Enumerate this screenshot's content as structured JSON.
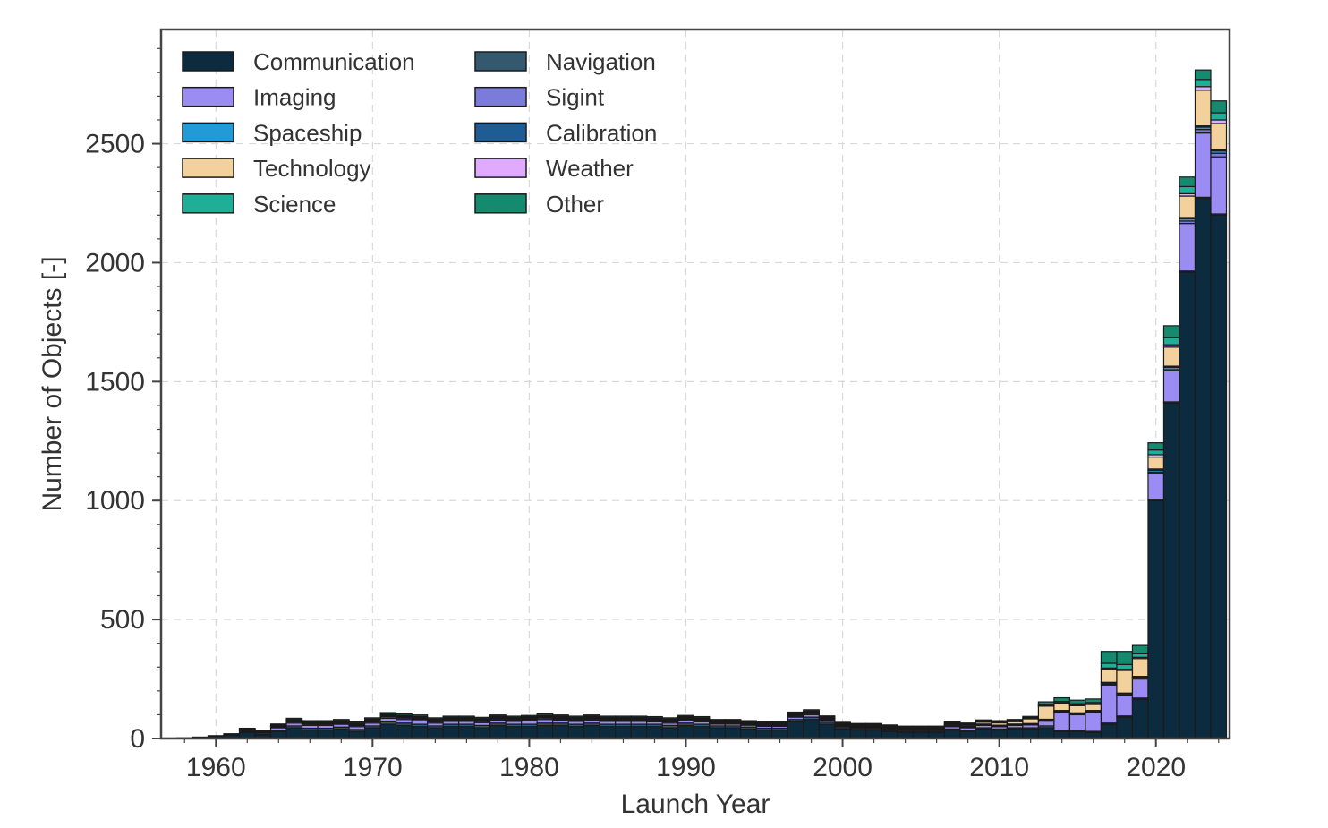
{
  "chart_data": {
    "type": "bar",
    "stacked": true,
    "title": "",
    "xlabel": "Launch Year",
    "ylabel": "Number of Objects [-]",
    "xlim": [
      1956.5,
      2024.7
    ],
    "ylim": [
      0,
      2980
    ],
    "xticks": [
      1960,
      1970,
      1980,
      1990,
      2000,
      2010,
      2020
    ],
    "yticks": [
      0,
      500,
      1000,
      1500,
      2000,
      2500
    ],
    "grid": true,
    "legend": {
      "placement": "top-left",
      "columns": 2
    },
    "x": [
      1957,
      1958,
      1959,
      1960,
      1961,
      1962,
      1963,
      1964,
      1965,
      1966,
      1967,
      1968,
      1969,
      1970,
      1971,
      1972,
      1973,
      1974,
      1975,
      1976,
      1977,
      1978,
      1979,
      1980,
      1981,
      1982,
      1983,
      1984,
      1985,
      1986,
      1987,
      1988,
      1989,
      1990,
      1991,
      1992,
      1993,
      1994,
      1995,
      1996,
      1997,
      1998,
      1999,
      2000,
      2001,
      2002,
      2003,
      2004,
      2005,
      2006,
      2007,
      2008,
      2009,
      2010,
      2011,
      2012,
      2013,
      2014,
      2015,
      2016,
      2017,
      2018,
      2019,
      2020,
      2021,
      2022,
      2023,
      2024
    ],
    "series": [
      {
        "name": "Communication",
        "color": "#0d2b3e",
        "values": [
          2,
          3,
          5,
          10,
          15,
          25,
          15,
          30,
          45,
          35,
          35,
          40,
          30,
          45,
          60,
          55,
          50,
          45,
          50,
          50,
          45,
          55,
          50,
          50,
          55,
          55,
          50,
          55,
          50,
          50,
          50,
          50,
          45,
          55,
          50,
          45,
          45,
          40,
          35,
          35,
          70,
          80,
          60,
          40,
          35,
          35,
          30,
          25,
          25,
          25,
          35,
          30,
          40,
          35,
          40,
          40,
          45,
          30,
          30,
          25,
          60,
          90,
          165,
          1000,
          1410,
          1960,
          2270,
          2200
        ]
      },
      {
        "name": "Navigation",
        "color": "#34586e",
        "values": [
          0,
          0,
          0,
          0,
          2,
          3,
          3,
          5,
          8,
          8,
          8,
          8,
          8,
          8,
          10,
          10,
          10,
          8,
          10,
          10,
          10,
          10,
          10,
          10,
          10,
          10,
          10,
          10,
          10,
          10,
          10,
          10,
          10,
          10,
          10,
          8,
          8,
          8,
          8,
          8,
          10,
          10,
          8,
          6,
          6,
          6,
          5,
          5,
          5,
          5,
          5,
          5,
          5,
          5,
          5,
          5,
          8,
          5,
          5,
          5,
          5,
          5,
          5,
          5,
          5,
          5,
          5,
          5
        ]
      },
      {
        "name": "Imaging",
        "color": "#9a8cf3",
        "values": [
          0,
          0,
          0,
          0,
          0,
          5,
          5,
          10,
          12,
          12,
          12,
          12,
          12,
          12,
          15,
          15,
          15,
          12,
          12,
          12,
          12,
          12,
          12,
          15,
          15,
          12,
          12,
          12,
          12,
          12,
          12,
          10,
          10,
          10,
          10,
          8,
          8,
          8,
          8,
          8,
          10,
          10,
          8,
          5,
          5,
          5,
          5,
          5,
          5,
          5,
          10,
          10,
          10,
          10,
          10,
          12,
          20,
          75,
          65,
          80,
          160,
          85,
          80,
          110,
          130,
          200,
          270,
          240
        ]
      },
      {
        "name": "Sigint",
        "color": "#7b7bd9",
        "values": [
          0,
          0,
          0,
          0,
          0,
          2,
          2,
          3,
          5,
          5,
          5,
          5,
          5,
          5,
          6,
          6,
          6,
          5,
          5,
          5,
          5,
          5,
          5,
          5,
          6,
          5,
          5,
          5,
          5,
          5,
          5,
          5,
          5,
          5,
          5,
          4,
          4,
          4,
          4,
          4,
          5,
          5,
          4,
          3,
          3,
          3,
          3,
          3,
          3,
          3,
          3,
          3,
          3,
          3,
          3,
          3,
          3,
          3,
          3,
          3,
          3,
          3,
          3,
          5,
          5,
          10,
          15,
          15
        ]
      },
      {
        "name": "Spaceship",
        "color": "#229ad6",
        "values": [
          0,
          0,
          0,
          0,
          1,
          1,
          1,
          2,
          2,
          2,
          2,
          2,
          2,
          3,
          3,
          3,
          3,
          3,
          3,
          3,
          3,
          3,
          3,
          3,
          3,
          3,
          3,
          3,
          3,
          3,
          3,
          3,
          3,
          3,
          3,
          2,
          2,
          2,
          2,
          2,
          2,
          2,
          2,
          2,
          2,
          2,
          2,
          2,
          2,
          2,
          2,
          2,
          2,
          2,
          2,
          2,
          3,
          3,
          3,
          3,
          5,
          5,
          5,
          8,
          10,
          10,
          10,
          10
        ]
      },
      {
        "name": "Calibration",
        "color": "#1d5c94",
        "values": [
          0,
          0,
          0,
          0,
          0,
          1,
          1,
          1,
          1,
          1,
          1,
          1,
          1,
          1,
          1,
          1,
          1,
          1,
          1,
          1,
          1,
          1,
          1,
          1,
          1,
          1,
          1,
          1,
          1,
          1,
          1,
          1,
          1,
          1,
          1,
          1,
          1,
          1,
          1,
          1,
          1,
          1,
          1,
          1,
          1,
          1,
          1,
          1,
          1,
          1,
          1,
          1,
          1,
          1,
          1,
          1,
          2,
          2,
          2,
          2,
          3,
          3,
          3,
          5,
          5,
          5,
          5,
          5
        ]
      },
      {
        "name": "Technology",
        "color": "#f3d19c",
        "values": [
          0,
          0,
          0,
          0,
          0,
          1,
          1,
          2,
          2,
          2,
          2,
          2,
          2,
          3,
          3,
          3,
          3,
          3,
          3,
          3,
          3,
          3,
          3,
          3,
          3,
          3,
          3,
          3,
          3,
          3,
          3,
          3,
          3,
          3,
          3,
          3,
          3,
          3,
          3,
          3,
          3,
          3,
          3,
          3,
          3,
          3,
          3,
          3,
          3,
          3,
          5,
          5,
          8,
          10,
          10,
          20,
          55,
          30,
          30,
          25,
          55,
          95,
          75,
          50,
          80,
          90,
          150,
          110
        ]
      },
      {
        "name": "Weather",
        "color": "#dfaaff",
        "values": [
          0,
          0,
          0,
          0,
          0,
          1,
          1,
          2,
          2,
          2,
          2,
          2,
          2,
          2,
          2,
          2,
          2,
          2,
          2,
          2,
          2,
          2,
          2,
          2,
          2,
          2,
          2,
          2,
          2,
          2,
          2,
          2,
          2,
          2,
          2,
          2,
          2,
          2,
          2,
          2,
          2,
          2,
          2,
          2,
          2,
          2,
          2,
          2,
          2,
          2,
          2,
          2,
          2,
          2,
          2,
          2,
          3,
          3,
          3,
          3,
          5,
          5,
          5,
          10,
          10,
          10,
          15,
          15
        ]
      },
      {
        "name": "Science",
        "color": "#1fae96",
        "values": [
          0,
          0,
          1,
          2,
          2,
          2,
          2,
          3,
          3,
          3,
          3,
          3,
          3,
          3,
          3,
          3,
          3,
          3,
          3,
          3,
          3,
          3,
          3,
          3,
          3,
          3,
          3,
          3,
          3,
          3,
          3,
          3,
          3,
          3,
          3,
          3,
          3,
          3,
          3,
          3,
          3,
          3,
          3,
          3,
          3,
          3,
          3,
          3,
          3,
          3,
          3,
          3,
          3,
          3,
          3,
          3,
          5,
          5,
          5,
          5,
          20,
          20,
          15,
          20,
          30,
          30,
          30,
          30
        ]
      },
      {
        "name": "Other",
        "color": "#168a6e",
        "values": [
          0,
          0,
          0,
          0,
          0,
          2,
          2,
          3,
          5,
          5,
          5,
          5,
          5,
          5,
          6,
          6,
          6,
          5,
          5,
          5,
          5,
          5,
          5,
          5,
          6,
          5,
          5,
          5,
          5,
          5,
          5,
          5,
          5,
          5,
          5,
          4,
          4,
          4,
          4,
          4,
          5,
          5,
          4,
          3,
          3,
          3,
          3,
          3,
          3,
          3,
          4,
          4,
          4,
          4,
          4,
          5,
          10,
          15,
          15,
          15,
          50,
          55,
          35,
          30,
          50,
          40,
          40,
          50
        ]
      }
    ]
  }
}
